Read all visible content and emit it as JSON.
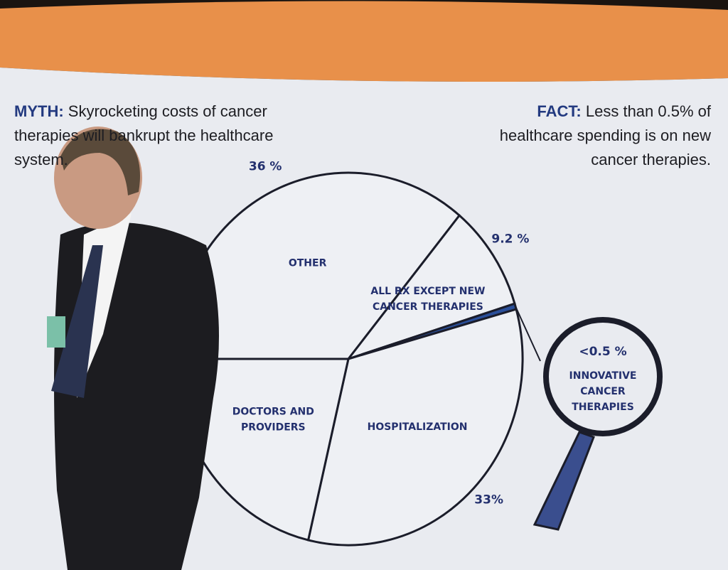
{
  "myth": {
    "label": "MYTH:",
    "text": "Skyrocketing costs of cancer therapies will bankrupt the healthcare system."
  },
  "fact": {
    "label": "FACT:",
    "text": "Less than 0.5% of healthcare spending is on new cancer therapies."
  },
  "chart_data": {
    "type": "pie",
    "categories": [
      "OTHER",
      "ALL RX EXCEPT NEW CANCER THERAPIES",
      "INNOVATIVE CANCER THERAPIES",
      "HOSPITALIZATION",
      "DOCTORS AND PROVIDERS"
    ],
    "values": [
      36,
      9.2,
      0.5,
      33,
      21.3
    ],
    "value_labels": [
      "36 %",
      "9.2 %",
      "<0.5 %",
      "33%",
      null
    ],
    "colors": [
      "#eef0f4",
      "#eef0f4",
      "#2a4f9a",
      "#eef0f4",
      "#eef0f4"
    ]
  }
}
